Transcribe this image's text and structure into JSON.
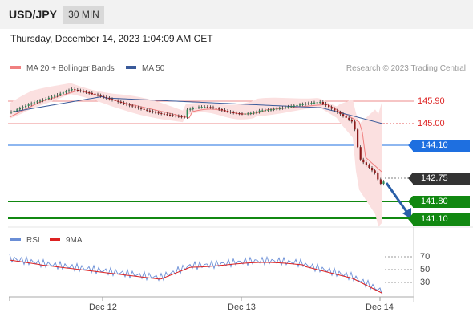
{
  "header": {
    "symbol": "USD/JPY",
    "timeframe": "30 MIN"
  },
  "timestamp": "Thursday, December 14, 2023 1:04:09 AM CET",
  "legend": {
    "bollinger": {
      "label": "MA 20 + Bollinger Bands",
      "color": "#f08080"
    },
    "ma50": {
      "label": "MA 50",
      "color": "#3a5a9a"
    },
    "credit": "Research © 2023 Trading Central"
  },
  "price_levels": {
    "resistance_2": {
      "value": "145.90",
      "color": "#dd2222"
    },
    "resistance_1": {
      "value": "145.00",
      "color": "#dd2222"
    },
    "pivot": {
      "value": "144.10",
      "color": "#1e6fe0"
    },
    "last": {
      "value": "142.75",
      "color": "#333333"
    },
    "support_1": {
      "value": "141.80",
      "color": "#118811"
    },
    "support_2": {
      "value": "141.10",
      "color": "#118811"
    }
  },
  "rsi": {
    "legend_rsi": "RSI",
    "legend_ma": "9MA",
    "rsi_color": "#6a8ed6",
    "ma_color": "#dd2222",
    "levels": [
      "70",
      "50",
      "30"
    ]
  },
  "dates": [
    "Dec 12",
    "Dec 13",
    "Dec 14"
  ],
  "colors": {
    "up_candle": "#2e8b57",
    "down_candle": "#8b1a1a",
    "forecast_arrow": "#2a5fa8",
    "band_fill": "#fbe0e0"
  }
}
